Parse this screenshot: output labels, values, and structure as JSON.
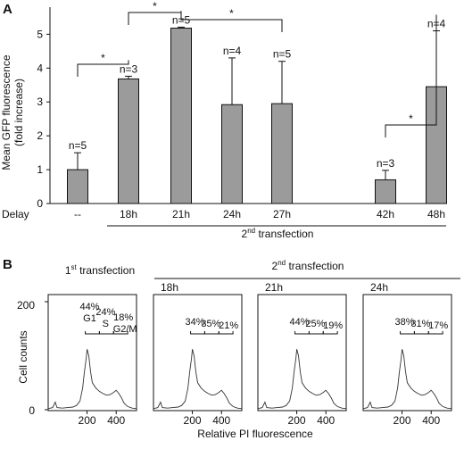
{
  "panel_labels": [
    "A",
    "B"
  ],
  "chart_data": [
    {
      "type": "bar",
      "panel": "A",
      "ylabel_line1": "Mean GFP fluorescence",
      "ylabel_line2": "(fold increase)",
      "ylim": [
        0,
        5.8
      ],
      "yticks": [
        0,
        1,
        2,
        3,
        4,
        5
      ],
      "row_label": "Delay",
      "group_label_prefix": "2",
      "group_label_sup": "nd",
      "group_label_rest": " transfection",
      "bar_color": "#9b9b9b",
      "bars": [
        {
          "category": "--",
          "value": 1.0,
          "error": 0.5,
          "n_label": "n=5"
        },
        {
          "category": "18h",
          "value": 3.68,
          "error": 0.08,
          "n_label": "n=3"
        },
        {
          "category": "21h",
          "value": 5.18,
          "error": 0.03,
          "n_label": "n=5"
        },
        {
          "category": "24h",
          "value": 2.92,
          "error": 1.38,
          "n_label": "n=4"
        },
        {
          "category": "27h",
          "value": 2.95,
          "error": 1.25,
          "n_label": "n=5"
        },
        {
          "category": "42h",
          "value": 0.7,
          "error": 0.28,
          "n_label": "n=3"
        },
        {
          "category": "48h",
          "value": 3.45,
          "error": 1.65,
          "n_label": "n=4"
        }
      ],
      "significance": [
        {
          "from": 0,
          "to": 1,
          "label": "*"
        },
        {
          "from": 1,
          "to": 2,
          "label": "*"
        },
        {
          "from": 2,
          "to": 4,
          "label": "*"
        },
        {
          "from": 5,
          "to": 6,
          "label": "*"
        }
      ]
    },
    {
      "type": "histogram",
      "panel": "B",
      "ylabel": "Cell counts",
      "xlabel": "Relative PI fluorescence",
      "ylim": [
        0,
        200
      ],
      "yticks": [
        0,
        200
      ],
      "xticks": [
        200,
        400
      ],
      "first_prefix": "1",
      "first_sup": "st",
      "first_rest": " transfection",
      "second_prefix": "2",
      "second_sup": "nd",
      "second_rest": " transfection",
      "panels": [
        {
          "time": "",
          "g1": "44%",
          "s": "24%",
          "g2m": "18%",
          "g1_label": "G1",
          "s_label": "S",
          "g2m_label": "G2/M"
        },
        {
          "time": "18h",
          "g1": "34%",
          "s": "35%",
          "g2m": "21%"
        },
        {
          "time": "21h",
          "g1": "44%",
          "s": "25%",
          "g2m": "19%"
        },
        {
          "time": "24h",
          "g1": "38%",
          "s": "31%",
          "g2m": "17%"
        }
      ]
    }
  ]
}
